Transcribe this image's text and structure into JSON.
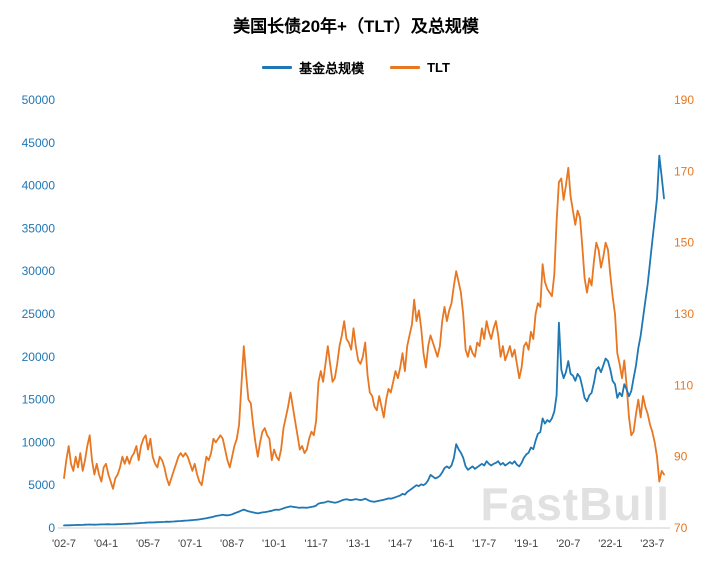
{
  "watermark": {
    "text": "FastBull"
  },
  "chart_data": {
    "type": "line",
    "title": "美国长债20年+（TLT）及总规模",
    "grid": false,
    "legend_position": "top",
    "x_unit": "monthly",
    "x_start": "2002-07",
    "x_tick_labels": [
      "'02-7",
      "'04-1",
      "'05-7",
      "'07-1",
      "'08-7",
      "'10-1",
      "'11-7",
      "'13-1",
      "'14-7",
      "'16-1",
      "'17-7",
      "'19-1",
      "'20-7",
      "'22-1",
      "'23-7"
    ],
    "x_tick_indices": [
      0,
      18,
      36,
      54,
      72,
      90,
      108,
      126,
      144,
      162,
      180,
      198,
      216,
      234,
      252
    ],
    "left_axis": {
      "min": 0,
      "max": 50000,
      "ticks": [
        0,
        5000,
        10000,
        15000,
        20000,
        25000,
        30000,
        35000,
        40000,
        45000,
        50000
      ],
      "color": "#1F77B4"
    },
    "right_axis": {
      "min": 70,
      "max": 190,
      "ticks": [
        70,
        90,
        110,
        130,
        150,
        170,
        190
      ],
      "color": "#E87722"
    },
    "series": [
      {
        "name": "基金总规模",
        "axis": "left",
        "color": "#1F77B4",
        "values": [
          300,
          320,
          310,
          330,
          340,
          350,
          360,
          345,
          365,
          380,
          395,
          410,
          395,
          385,
          395,
          405,
          415,
          425,
          435,
          440,
          425,
          420,
          435,
          445,
          455,
          465,
          478,
          488,
          498,
          510,
          525,
          545,
          560,
          580,
          600,
          618,
          638,
          658,
          645,
          662,
          672,
          688,
          702,
          718,
          738,
          726,
          748,
          762,
          782,
          802,
          822,
          842,
          862,
          882,
          905,
          925,
          950,
          975,
          1000,
          1050,
          1100,
          1150,
          1200,
          1250,
          1320,
          1400,
          1450,
          1500,
          1550,
          1500,
          1480,
          1520,
          1600,
          1700,
          1820,
          1920,
          2050,
          2150,
          2050,
          1950,
          1880,
          1820,
          1760,
          1700,
          1760,
          1820,
          1860,
          1910,
          1960,
          2010,
          2100,
          2150,
          2120,
          2200,
          2300,
          2400,
          2450,
          2520,
          2480,
          2440,
          2400,
          2360,
          2400,
          2380,
          2360,
          2410,
          2460,
          2510,
          2620,
          2850,
          2920,
          2960,
          3010,
          3120,
          3060,
          3000,
          2950,
          3010,
          3110,
          3220,
          3320,
          3360,
          3300,
          3260,
          3320,
          3380,
          3320,
          3260,
          3320,
          3420,
          3300,
          3150,
          3100,
          3060,
          3120,
          3180,
          3240,
          3300,
          3380,
          3460,
          3420,
          3500,
          3600,
          3700,
          3800,
          4000,
          3900,
          4200,
          4400,
          4600,
          4800,
          5000,
          4900,
          5100,
          5000,
          5200,
          5600,
          6200,
          6000,
          5800,
          5900,
          6100,
          6500,
          7000,
          7200,
          7000,
          7300,
          8200,
          9800,
          9200,
          8800,
          8200,
          7200,
          6800,
          7000,
          7200,
          6900,
          7100,
          7300,
          7500,
          7300,
          7800,
          7500,
          7300,
          7500,
          7600,
          7800,
          7400,
          7600,
          7300,
          7500,
          7700,
          7500,
          7800,
          7400,
          7200,
          7600,
          8200,
          8600,
          8800,
          9400,
          9200,
          10200,
          11000,
          11200,
          12800,
          12200,
          12600,
          12400,
          12800,
          13600,
          15500,
          24000,
          18500,
          17500,
          18200,
          19500,
          18000,
          17800,
          17200,
          18000,
          17600,
          16500,
          15200,
          14800,
          15500,
          15800,
          17000,
          18500,
          18800,
          18200,
          19000,
          19800,
          19500,
          18500,
          17200,
          16800,
          15200,
          15800,
          15400,
          16800,
          16200,
          15400,
          16000,
          17500,
          19000,
          21000,
          22500,
          24500,
          26500,
          28500,
          31000,
          33500,
          36000,
          38500,
          43500,
          41000,
          38500
        ]
      },
      {
        "name": "TLT",
        "axis": "right",
        "color": "#E87722",
        "values": [
          84,
          89,
          93,
          88,
          86,
          90,
          87,
          91,
          86,
          89,
          93,
          96,
          89,
          85,
          88,
          85,
          83,
          87,
          88,
          85,
          83,
          81,
          84,
          85,
          87,
          90,
          88,
          90,
          88,
          90,
          91,
          93,
          89,
          93,
          95,
          96,
          92,
          95,
          90,
          88,
          87,
          90,
          89,
          87,
          84,
          82,
          84,
          86,
          88,
          90,
          91,
          90,
          91,
          90,
          88,
          86,
          88,
          85,
          83,
          82,
          86,
          90,
          89,
          91,
          95,
          94,
          95,
          96,
          95,
          92,
          89,
          87,
          90,
          93,
          95,
          99,
          110,
          121,
          113,
          106,
          105,
          99,
          94,
          90,
          94,
          97,
          98,
          96,
          95,
          89,
          92,
          90,
          89,
          92,
          98,
          101,
          104,
          108,
          104,
          100,
          96,
          92,
          93,
          91,
          92,
          95,
          97,
          96,
          100,
          111,
          114,
          111,
          116,
          121,
          116,
          111,
          112,
          116,
          121,
          124,
          128,
          123,
          122,
          120,
          126,
          121,
          117,
          116,
          118,
          122,
          113,
          108,
          107,
          104,
          103,
          107,
          104,
          101,
          106,
          109,
          108,
          111,
          114,
          112,
          115,
          119,
          114,
          121,
          124,
          127,
          134,
          128,
          131,
          126,
          119,
          115,
          121,
          124,
          122,
          120,
          118,
          121,
          128,
          132,
          128,
          131,
          133,
          138,
          142,
          139,
          136,
          130,
          120,
          118,
          121,
          119,
          118,
          122,
          121,
          126,
          123,
          128,
          125,
          123,
          126,
          128,
          124,
          118,
          121,
          117,
          119,
          121,
          118,
          120,
          116,
          112,
          115,
          121,
          122,
          120,
          125,
          123,
          130,
          133,
          132,
          144,
          139,
          137,
          136,
          135,
          141,
          156,
          167,
          168,
          162,
          166,
          171,
          163,
          159,
          155,
          159,
          157,
          149,
          140,
          136,
          140,
          138,
          145,
          150,
          148,
          143,
          146,
          150,
          148,
          141,
          135,
          130,
          119,
          116,
          112,
          117,
          110,
          101,
          96,
          97,
          102,
          106,
          101,
          107,
          104,
          102,
          99,
          97,
          94,
          90,
          83,
          86,
          85
        ]
      }
    ]
  }
}
